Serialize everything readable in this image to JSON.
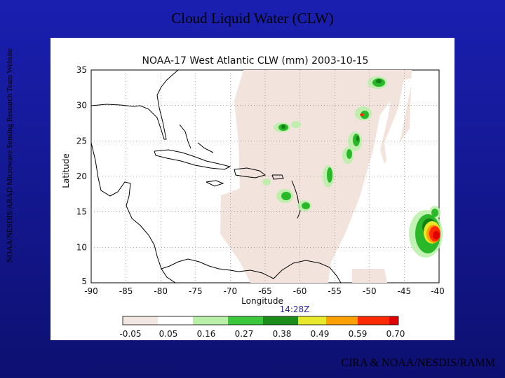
{
  "slide": {
    "title": "Cloud Liquid Water (CLW)",
    "side_credit": "NOAA/NESDIS/ARAD Microwave Sensing Research Team Website",
    "footer": "CIRA & NOAA/NESDIS/RAMM"
  },
  "map": {
    "title": "NOAA-17 West Atlantic CLW (mm) 2003-10-15",
    "xlabel": "Longitude",
    "ylabel": "Latitude",
    "time_label": "14:28Z",
    "x_ticks": [
      "-90",
      "-85",
      "-80",
      "-75",
      "-70",
      "-65",
      "-60",
      "-55",
      "-50",
      "-45",
      "-40"
    ],
    "y_ticks": [
      "35",
      "30",
      "25",
      "20",
      "15",
      "10",
      "5"
    ],
    "lon_range": [
      -90,
      -40
    ],
    "lat_range": [
      5,
      35
    ]
  },
  "colorbar": {
    "labels": [
      "-0.05",
      "0.05",
      "0.16",
      "0.27",
      "0.38",
      "0.49",
      "0.59",
      "0.70"
    ],
    "colors": [
      "#f2e6e0",
      "#ffffff",
      "#b8f0a8",
      "#3cc83c",
      "#1a8c1a",
      "#e8e82a",
      "#ffa000",
      "#ff2a00",
      "#e00000"
    ]
  }
}
